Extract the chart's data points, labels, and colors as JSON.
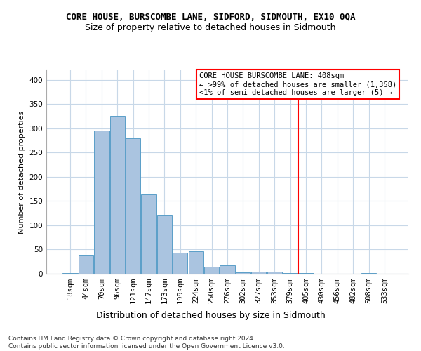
{
  "title": "CORE HOUSE, BURSCOMBE LANE, SIDFORD, SIDMOUTH, EX10 0QA",
  "subtitle": "Size of property relative to detached houses in Sidmouth",
  "xlabel": "Distribution of detached houses by size in Sidmouth",
  "ylabel": "Number of detached properties",
  "categories": [
    "18sqm",
    "44sqm",
    "70sqm",
    "96sqm",
    "121sqm",
    "147sqm",
    "173sqm",
    "199sqm",
    "224sqm",
    "250sqm",
    "276sqm",
    "302sqm",
    "327sqm",
    "353sqm",
    "379sqm",
    "405sqm",
    "430sqm",
    "456sqm",
    "482sqm",
    "508sqm",
    "533sqm"
  ],
  "values": [
    2,
    39,
    296,
    326,
    279,
    164,
    122,
    44,
    46,
    15,
    17,
    3,
    5,
    5,
    2,
    2,
    0,
    0,
    0,
    2,
    0
  ],
  "bar_color": "#aac4e0",
  "bar_edge_color": "#5a9ec8",
  "grid_color": "#c8d8e8",
  "vline_x_index": 15,
  "vline_color": "red",
  "annotation_text": "CORE HOUSE BURSCOMBE LANE: 408sqm\n← >99% of detached houses are smaller (1,358)\n<1% of semi-detached houses are larger (5) →",
  "annotation_box_color": "white",
  "annotation_box_edge_color": "red",
  "ylim": [
    0,
    420
  ],
  "yticks": [
    0,
    50,
    100,
    150,
    200,
    250,
    300,
    350,
    400
  ],
  "footer_text": "Contains HM Land Registry data © Crown copyright and database right 2024.\nContains public sector information licensed under the Open Government Licence v3.0.",
  "title_fontsize": 9,
  "subtitle_fontsize": 9,
  "xlabel_fontsize": 9,
  "ylabel_fontsize": 8,
  "tick_fontsize": 7.5,
  "annotation_fontsize": 7.5,
  "footer_fontsize": 6.5,
  "bg_color": "#f0f4f8"
}
